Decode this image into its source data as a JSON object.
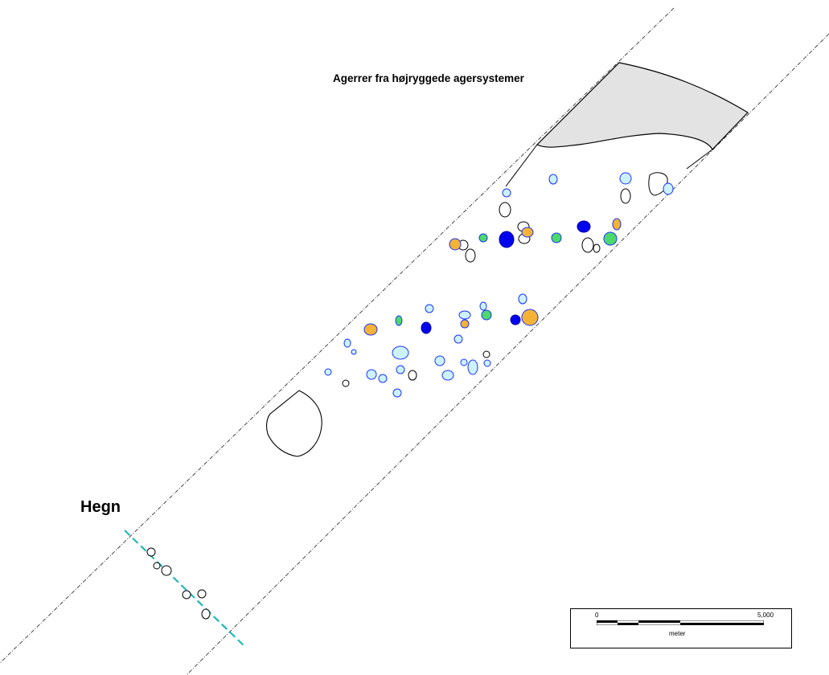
{
  "labels": {
    "field_systems": "Agerrer fra højryggede agersystemer",
    "fence": "Hegn"
  },
  "scale_bar": {
    "zero": "0",
    "max": "5,000",
    "unit": "meter"
  },
  "colors": {
    "light_blue_fill": "#ccf2ff",
    "blue_outline": "#1a33ff",
    "dark_blue": "#0000ee",
    "orange": "#f5b335",
    "green": "#4cd96b",
    "grey_area": "#e3e3e3",
    "fence_line": "#20b8b8"
  }
}
